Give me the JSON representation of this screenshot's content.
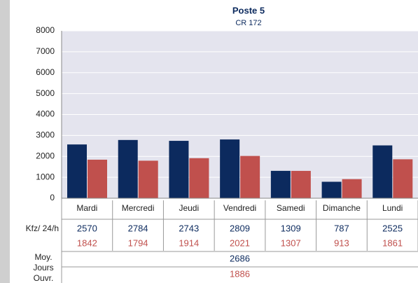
{
  "chart_data": {
    "type": "bar",
    "title": "Poste 5",
    "subtitle": "CR 172",
    "categories": [
      "Mardi",
      "Mercredi",
      "Jeudi",
      "Vendredi",
      "Samedi",
      "Dimanche",
      "Lundi"
    ],
    "series": [
      {
        "color": "#0c2a5e",
        "values": [
          2570,
          2784,
          2743,
          2809,
          1309,
          787,
          2525
        ]
      },
      {
        "color": "#c0504d",
        "values": [
          1842,
          1794,
          1914,
          2021,
          1307,
          913,
          1861
        ]
      }
    ],
    "ylim": [
      0,
      8000
    ],
    "yticks": [
      0,
      1000,
      2000,
      3000,
      4000,
      5000,
      6000,
      7000,
      8000
    ],
    "grid": true,
    "plot_background": "#e4e4ee"
  },
  "table": {
    "row_label": "Kfz/ 24/h",
    "average_label": [
      "Moy.",
      "Jours",
      "Ouvr."
    ],
    "averages": [
      2686,
      1886
    ]
  }
}
